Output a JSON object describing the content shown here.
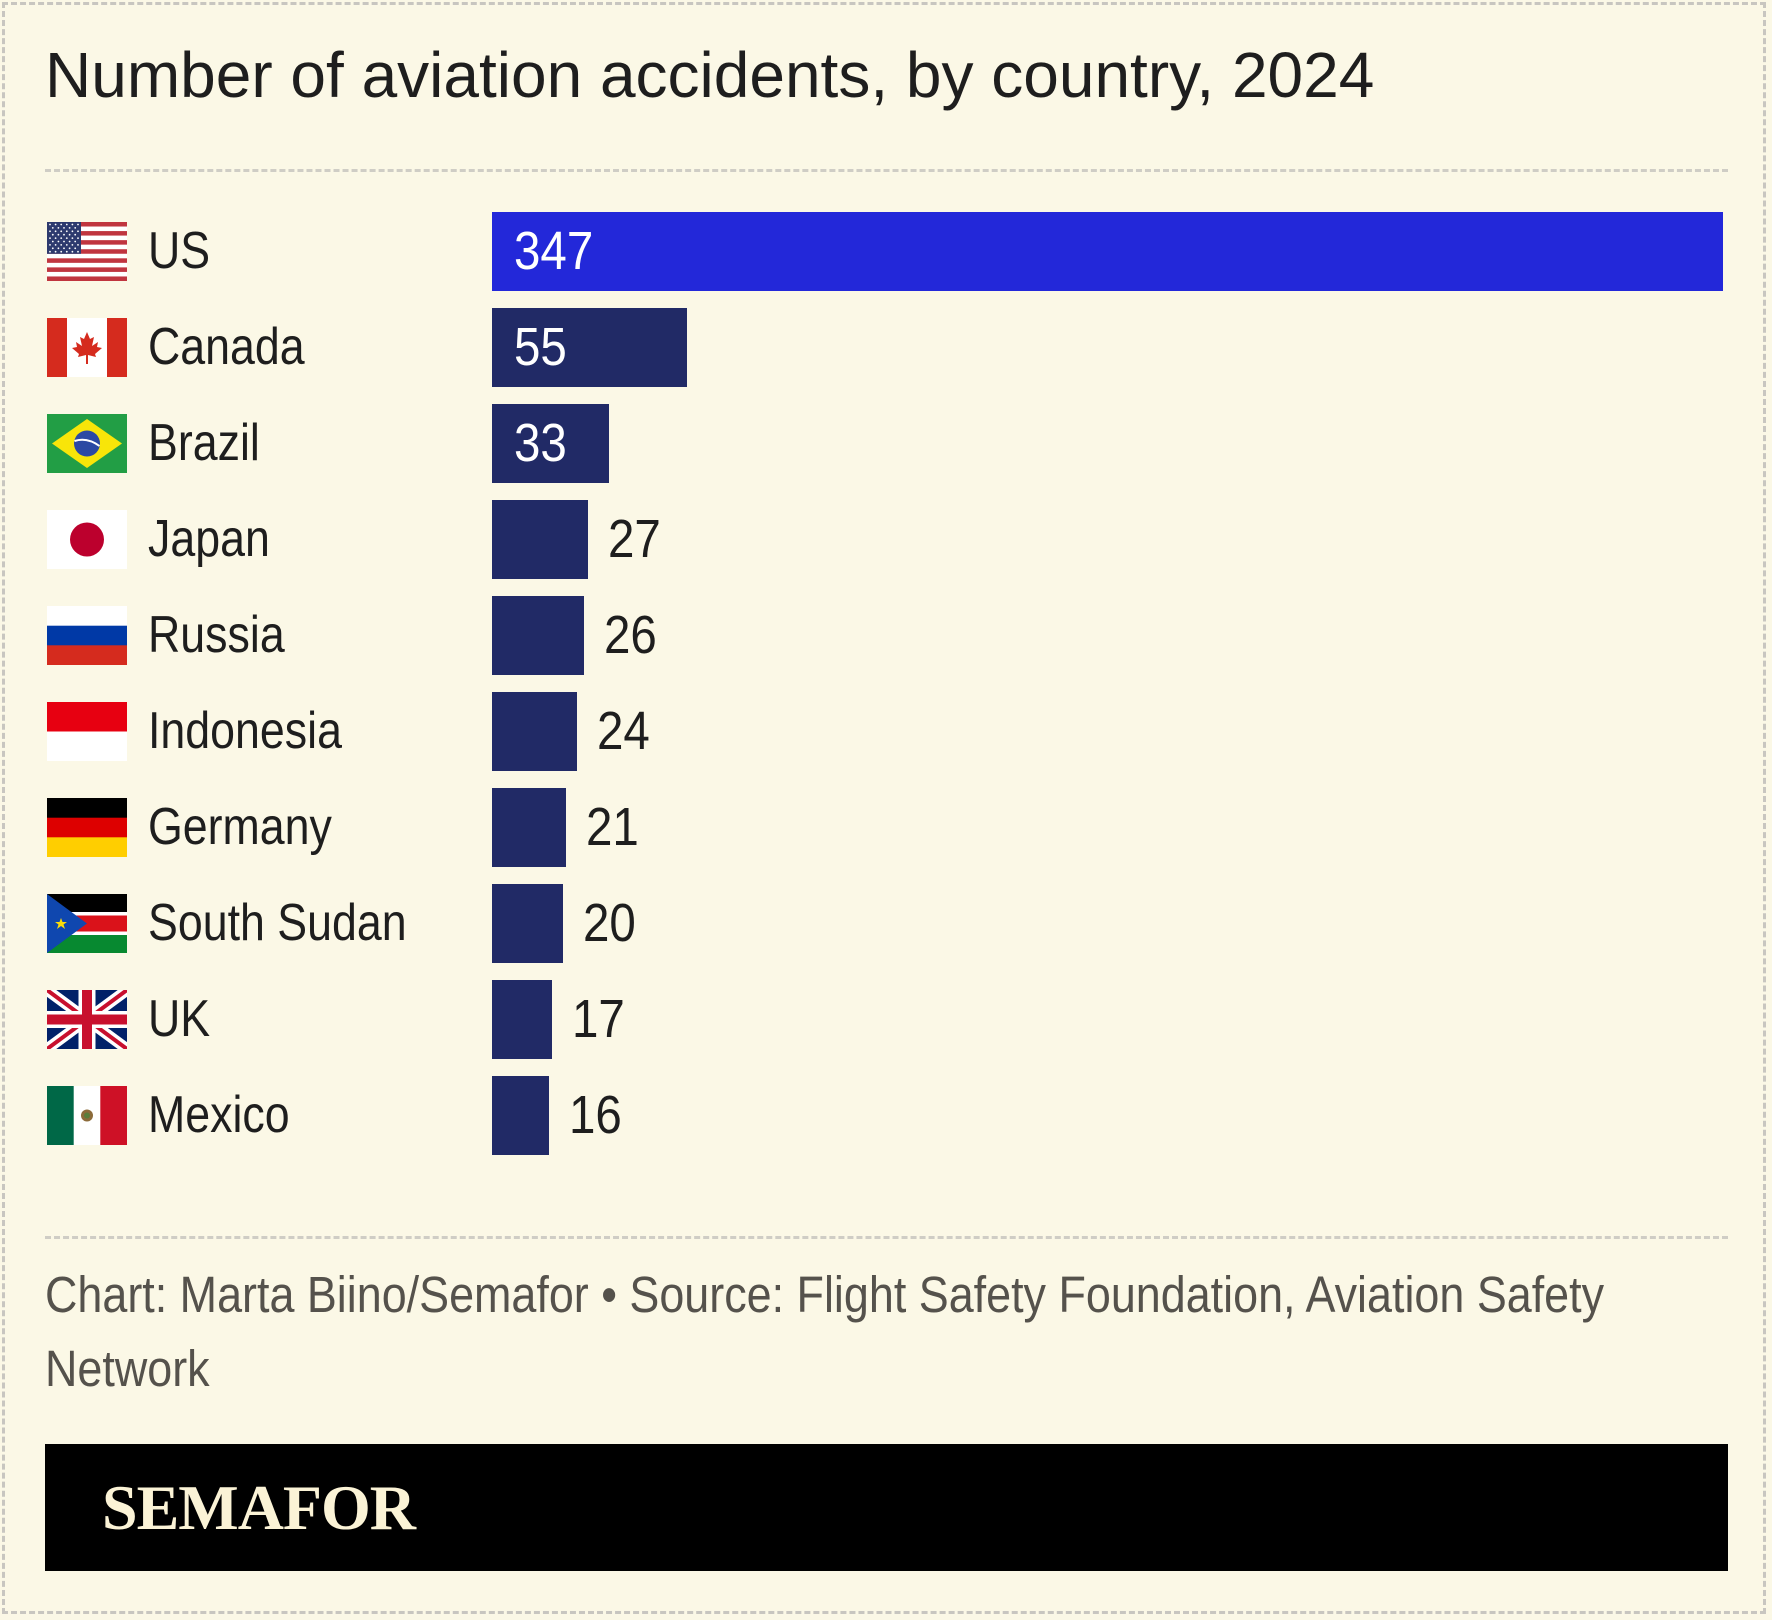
{
  "colors": {
    "background": "#fbf8e6",
    "highlight_bar": "#2328d9",
    "bar": "#212a66"
  },
  "chart_data": {
    "type": "bar",
    "orientation": "horizontal",
    "title": "Number of aviation accidents, by country, 2024",
    "categories": [
      "US",
      "Canada",
      "Brazil",
      "Japan",
      "Russia",
      "Indonesia",
      "Germany",
      "South Sudan",
      "UK",
      "Mexico"
    ],
    "values": [
      347,
      55,
      33,
      27,
      26,
      24,
      21,
      20,
      17,
      16
    ],
    "flags": [
      "us-flag-icon",
      "canada-flag-icon",
      "brazil-flag-icon",
      "japan-flag-icon",
      "russia-flag-icon",
      "indonesia-flag-icon",
      "germany-flag-icon",
      "south-sudan-flag-icon",
      "uk-flag-icon",
      "mexico-flag-icon"
    ],
    "highlighted": "US",
    "xlim": [
      0,
      347
    ],
    "grid": false,
    "data_labels": true
  },
  "footer": {
    "credit": "Chart: Marta Biino/Semafor • Source: Flight Safety Foundation, Aviation Safety Network"
  },
  "brand": {
    "logo": "SEMAFOR"
  }
}
